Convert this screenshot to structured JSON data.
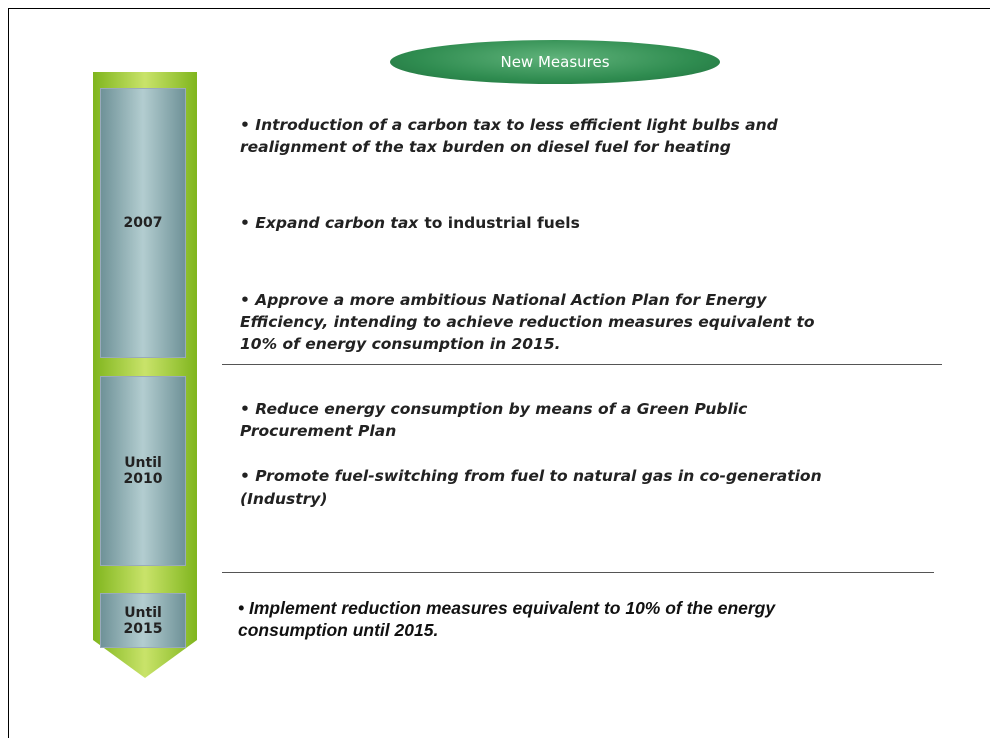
{
  "header": {
    "title": "New Measures"
  },
  "periods": [
    {
      "label": [
        "2007"
      ],
      "items": [
        {
          "lines": [
            "• Introduction of a carbon tax to less efficient light bulbs and",
            "realignment of the tax burden on diesel fuel for heating"
          ]
        },
        {
          "lines": [
            "• Expand  carbon tax"
          ],
          "suffix": "to industrial fuels"
        },
        {
          "lines": [
            "• Approve a more ambitious National Action Plan for Energy",
            "Efficiency, intending to achieve reduction measures equivalent to",
            "10% of energy consumption in 2015."
          ]
        }
      ]
    },
    {
      "label": [
        "Until",
        "2010"
      ],
      "items": [
        {
          "lines": [
            "• Reduce energy consumption by means of a Green Public",
            "Procurement Plan"
          ]
        },
        {
          "lines": [
            "• Promote fuel-switching from fuel to natural gas in co-generation",
            "(Industry)"
          ]
        }
      ]
    },
    {
      "label": [
        "Until",
        "2015"
      ],
      "items": [
        {
          "lines": [
            "• Implement reduction measures equivalent to 10% of the energy",
            "consumption until 2015."
          ]
        }
      ]
    }
  ]
}
